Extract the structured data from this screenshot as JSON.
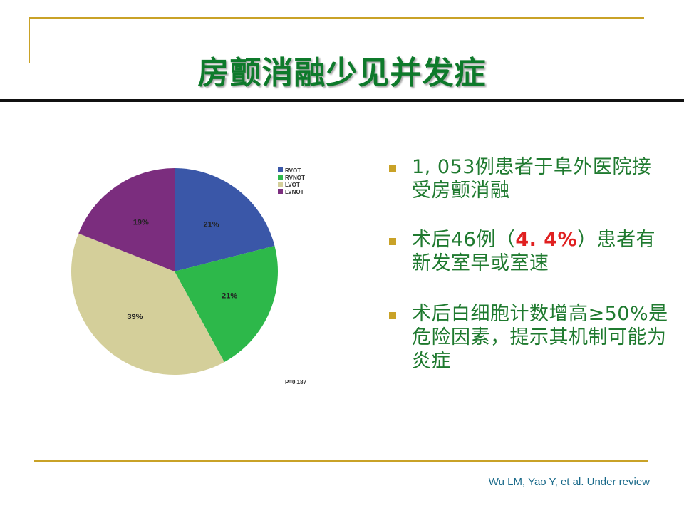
{
  "slide": {
    "title": "房颤消融少见并发症",
    "citation": "Wu LM, Yao Y, et al. Under review"
  },
  "bullets": [
    {
      "text": "1, 053例患者于阜外医院接受房颤消融"
    },
    {
      "prefix": "术后46例（",
      "highlight": "4. 4%",
      "suffix": "）患者有新发室早或室速"
    },
    {
      "text": "术后白细胞计数增高≥50%是危险因素，提示其机制可能为炎症"
    }
  ],
  "colors": {
    "title": "#0e7a2b",
    "bullet_text": "#1f7a2f",
    "highlight": "#e02020",
    "accent_rule": "#c9a227"
  },
  "chart_data": {
    "type": "pie",
    "title": "",
    "legend_placement": "top-right",
    "slices": [
      {
        "name": "RVOT",
        "value": 21,
        "label": "21%",
        "color": "#3a57a8"
      },
      {
        "name": "RVNOT",
        "value": 21,
        "label": "21%",
        "color": "#2db84a"
      },
      {
        "name": "LVOT",
        "value": 39,
        "label": "39%",
        "color": "#d4cf9a"
      },
      {
        "name": "LVNOT",
        "value": 19,
        "label": "19%",
        "color": "#7b2d7e"
      }
    ],
    "annotation": "P=0.187"
  }
}
